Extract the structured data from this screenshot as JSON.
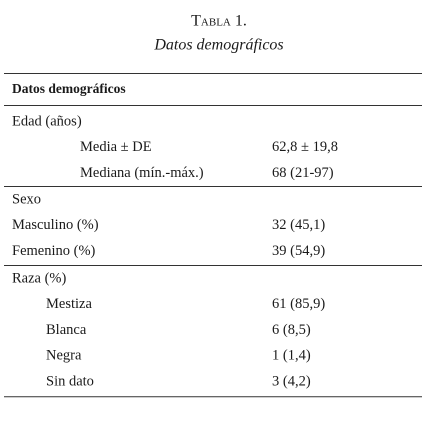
{
  "header": {
    "title": "Tabla 1.",
    "subtitle": "Datos demográficos"
  },
  "table": {
    "header": "Datos demográficos",
    "sections": [
      {
        "label": "Edad (años)",
        "rows": [
          [
            "Media ± DE",
            "62,8 ± 19,8"
          ],
          [
            "Mediana (mín.-máx.)",
            "68 (21-97)"
          ]
        ]
      },
      {
        "label": "Sexo",
        "rows": [
          [
            "Masculino (%)",
            "32 (45,1)"
          ],
          [
            "Femenino (%)",
            "39 (54,9)"
          ]
        ]
      },
      {
        "label": "Raza (%)",
        "rows": [
          [
            "Mestiza",
            "61 (85,9)"
          ],
          [
            "Blanca",
            "6 (8,5)"
          ],
          [
            "Negra",
            "1 (1,4)"
          ],
          [
            "Sin dato",
            "3 (4,2)"
          ]
        ]
      }
    ]
  }
}
